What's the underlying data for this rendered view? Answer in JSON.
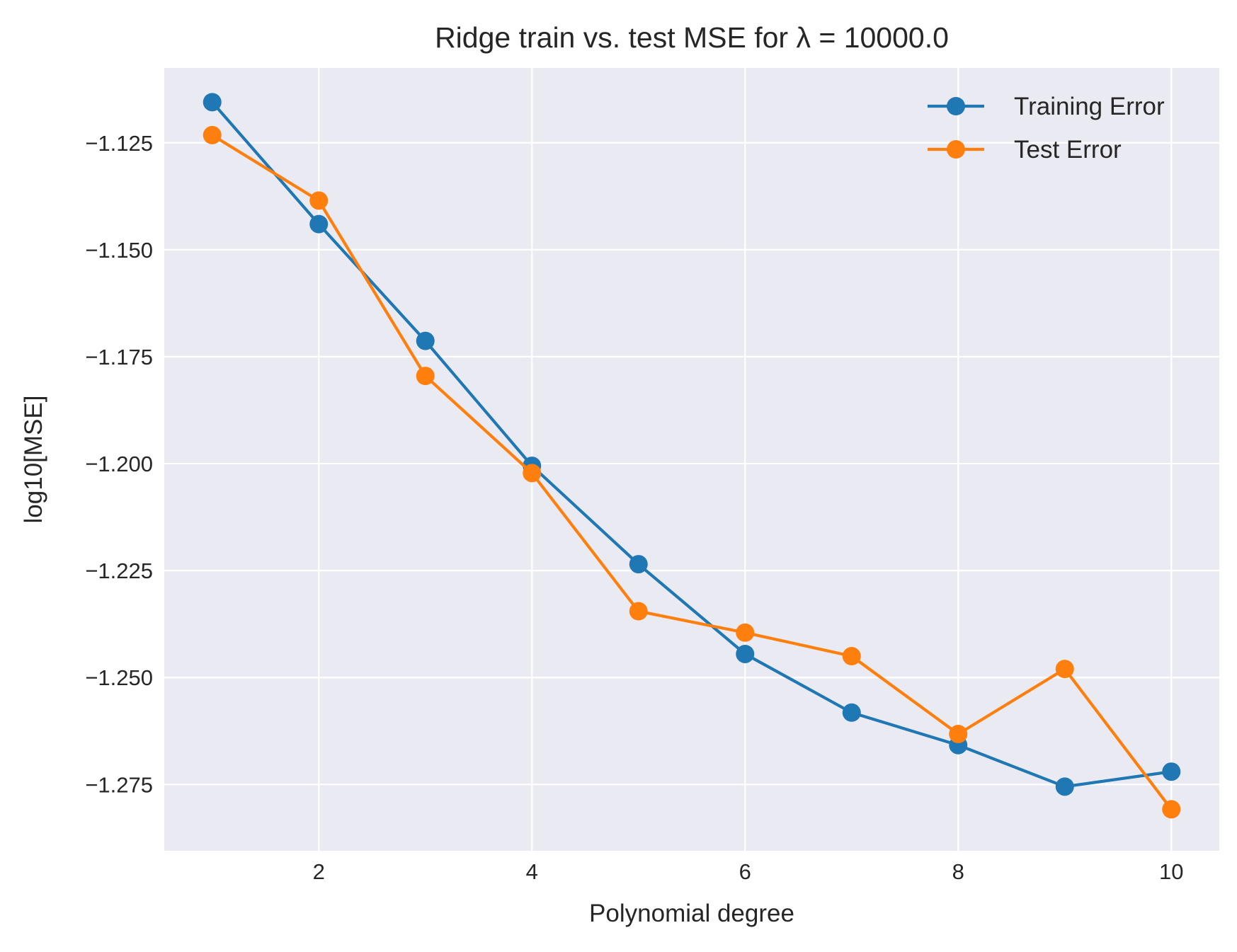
{
  "chart_data": {
    "type": "line",
    "title": "Ridge train vs. test MSE for λ =  10000.0",
    "xlabel": "Polynomial degree",
    "ylabel": "log10[MSE]",
    "xlim": [
      0.55,
      10.45
    ],
    "ylim": [
      -1.2905,
      -1.1075
    ],
    "x_ticks": [
      2,
      4,
      6,
      8,
      10
    ],
    "x_tick_labels": [
      "2",
      "4",
      "6",
      "8",
      "10"
    ],
    "y_ticks": [
      -1.125,
      -1.15,
      -1.175,
      -1.2,
      -1.225,
      -1.25,
      -1.275
    ],
    "y_tick_labels": [
      "−1.125",
      "−1.150",
      "−1.175",
      "−1.200",
      "−1.225",
      "−1.250",
      "−1.275"
    ],
    "grid": true,
    "legend_position": "top-right",
    "x": [
      1,
      2,
      3,
      4,
      5,
      6,
      7,
      8,
      9,
      10
    ],
    "series": [
      {
        "name": "Training Error",
        "color": "#1f77b4",
        "values": [
          -1.1155,
          -1.144,
          -1.1713,
          -1.2005,
          -1.2235,
          -1.2445,
          -1.2582,
          -1.2658,
          -1.2755,
          -1.272
        ]
      },
      {
        "name": "Test Error",
        "color": "#ff7f0e",
        "values": [
          -1.1232,
          -1.1385,
          -1.1795,
          -1.2022,
          -1.2345,
          -1.2395,
          -1.245,
          -1.2632,
          -1.248,
          -1.2808
        ]
      }
    ],
    "plot_background": "#eaeaf2"
  }
}
